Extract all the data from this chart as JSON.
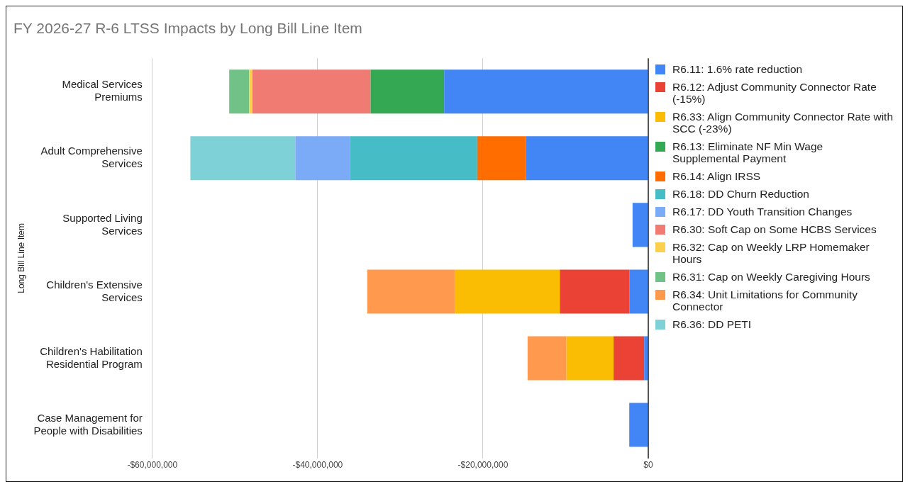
{
  "chart_data": {
    "type": "bar",
    "orientation": "horizontal",
    "stacked": true,
    "title": "FY 2026-27 R-6 LTSS Impacts by Long Bill Line Item",
    "ylabel": "Long Bill Line Item",
    "categories": [
      "Medical Services Premiums",
      "Adult Comprehensive Services",
      "Supported Living Services",
      "Children's Extensive Services",
      "Children's Habilitation Residential Program",
      "Case Management for People with Disabilities"
    ],
    "series": [
      {
        "name": "R6.11: 1.6% rate reduction",
        "color": "#4285f4",
        "values": [
          -24700000,
          -14800000,
          -1900000,
          -2300000,
          -500000,
          -2300000
        ]
      },
      {
        "name": "R6.12: Adjust Community Connector Rate (-15%)",
        "color": "#ea4335",
        "values": [
          null,
          null,
          null,
          -8400000,
          -3700000,
          null
        ]
      },
      {
        "name": "R6.33: Align Community Connector Rate with SCC (-23%)",
        "color": "#fbbc04",
        "values": [
          null,
          null,
          null,
          -12700000,
          -5700000,
          null
        ]
      },
      {
        "name": "R6.13: Eliminate NF Min Wage Supplemental Payment",
        "color": "#34a853",
        "values": [
          -8900000,
          null,
          null,
          null,
          null,
          null
        ]
      },
      {
        "name": "R6.14: Align IRSS",
        "color": "#ff6d01",
        "values": [
          null,
          -5900000,
          null,
          null,
          null,
          null
        ]
      },
      {
        "name": "R6.18: DD Churn Reduction",
        "color": "#46bdc6",
        "values": [
          null,
          -15400000,
          null,
          null,
          null,
          null
        ]
      },
      {
        "name": "R6.17: DD Youth Transition Changes",
        "color": "#7baaf7",
        "values": [
          null,
          -6600000,
          null,
          null,
          null,
          null
        ]
      },
      {
        "name": "R6.30: Soft Cap on Some HCBS Services",
        "color": "#f07b72",
        "values": [
          -14300000,
          null,
          null,
          null,
          null,
          null
        ]
      },
      {
        "name": "R6.32: Cap on Weekly LRP Homemaker Hours",
        "color": "#fcd04f",
        "values": [
          -400000,
          null,
          null,
          null,
          null,
          null
        ]
      },
      {
        "name": "R6.31: Cap on Weekly Caregiving Hours",
        "color": "#71c287",
        "values": [
          -2400000,
          null,
          null,
          null,
          null,
          null
        ]
      },
      {
        "name": "R6.34: Unit Limitations for Community Connector",
        "color": "#ff994d",
        "values": [
          null,
          null,
          null,
          -10600000,
          -4700000,
          null
        ]
      },
      {
        "name": "R6.36: DD PETI",
        "color": "#7ed1d7",
        "values": [
          null,
          -12700000,
          null,
          null,
          null,
          null
        ]
      }
    ],
    "xlim": [
      -60000000,
      0
    ],
    "xticks": [
      {
        "value": -60000000,
        "label": "-$60,000,000"
      },
      {
        "value": -40000000,
        "label": "-$40,000,000"
      },
      {
        "value": -20000000,
        "label": "-$20,000,000"
      },
      {
        "value": 0,
        "label": "$0"
      }
    ],
    "grid": "x",
    "legend": "right"
  }
}
